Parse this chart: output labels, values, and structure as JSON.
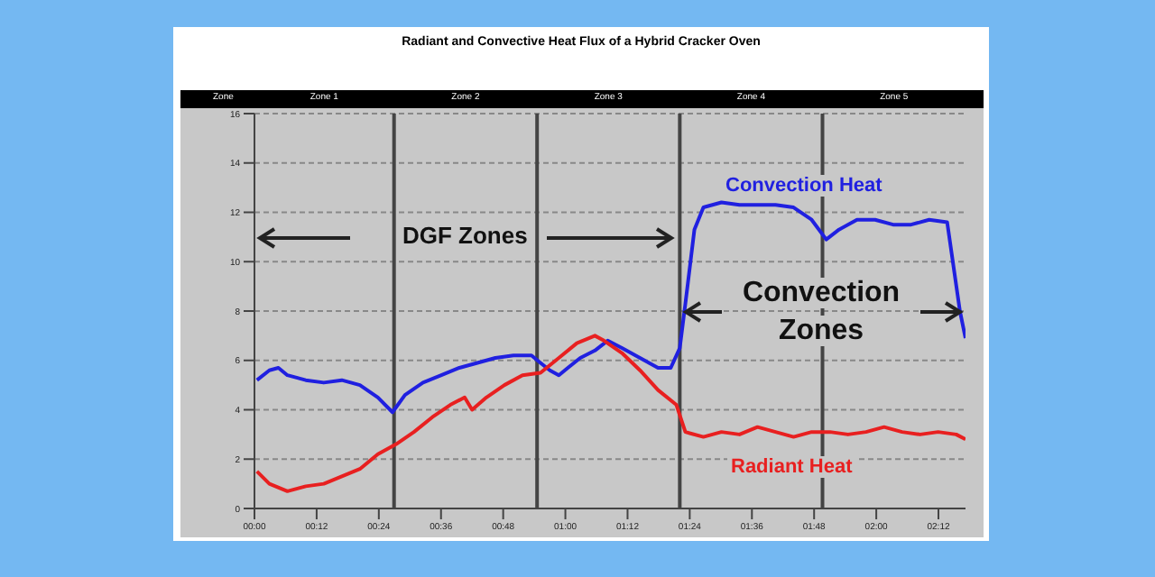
{
  "chart_data": {
    "type": "line",
    "title": "Radiant and Convective Heat Flux of a Hybrid Cracker Oven",
    "xlim": [
      0,
      2.287
    ],
    "xticks": [
      {
        "value": 0,
        "label": "00:00"
      },
      {
        "value": 0.2,
        "label": "00:12"
      },
      {
        "value": 0.4,
        "label": "00:24"
      },
      {
        "value": 0.6,
        "label": "00:36"
      },
      {
        "value": 0.8,
        "label": "00:48"
      },
      {
        "value": 1.0,
        "label": "01:00"
      },
      {
        "value": 1.2,
        "label": "01:12"
      },
      {
        "value": 1.4,
        "label": "01:24"
      },
      {
        "value": 1.6,
        "label": "01:36"
      },
      {
        "value": 1.8,
        "label": "01:48"
      },
      {
        "value": 2.0,
        "label": "02:00"
      },
      {
        "value": 2.2,
        "label": "02:12"
      }
    ],
    "ylim": [
      0,
      16
    ],
    "yticks": [
      0,
      2,
      4,
      6,
      8,
      10,
      12,
      14,
      16
    ],
    "grid": "y",
    "marker": "none",
    "line_style": "solid",
    "legend": false,
    "series": [
      {
        "name": "Convection Heat",
        "color": "#2020e0",
        "x": [
          0.008,
          0.048,
          0.077,
          0.106,
          0.165,
          0.223,
          0.281,
          0.339,
          0.397,
          0.444,
          0.484,
          0.542,
          0.601,
          0.659,
          0.717,
          0.775,
          0.833,
          0.891,
          0.92,
          0.95,
          0.979,
          1.008,
          1.048,
          1.095,
          1.136,
          1.182,
          1.24,
          1.298,
          1.339,
          1.368,
          1.386,
          1.415,
          1.444,
          1.502,
          1.56,
          1.618,
          1.676,
          1.734,
          1.792,
          1.839,
          1.88,
          1.938,
          1.996,
          2.054,
          2.112,
          2.17,
          2.228,
          2.269,
          2.287
        ],
        "values": [
          5.2,
          5.6,
          5.7,
          5.4,
          5.2,
          5.1,
          5.2,
          5.0,
          4.5,
          3.9,
          4.6,
          5.1,
          5.4,
          5.7,
          5.9,
          6.1,
          6.2,
          6.2,
          5.9,
          5.6,
          5.4,
          5.7,
          6.1,
          6.4,
          6.8,
          6.5,
          6.1,
          5.7,
          5.7,
          6.5,
          8.3,
          11.3,
          12.2,
          12.4,
          12.3,
          12.3,
          12.3,
          12.2,
          11.7,
          10.9,
          11.3,
          11.7,
          11.7,
          11.5,
          11.5,
          11.7,
          11.6,
          8.0,
          6.9
        ]
      },
      {
        "name": "Radiant Heat",
        "color": "#e82020",
        "x": [
          0.008,
          0.048,
          0.106,
          0.165,
          0.223,
          0.281,
          0.339,
          0.397,
          0.455,
          0.513,
          0.572,
          0.63,
          0.676,
          0.7,
          0.746,
          0.804,
          0.862,
          0.92,
          0.979,
          1.037,
          1.095,
          1.124,
          1.182,
          1.24,
          1.298,
          1.357,
          1.386,
          1.444,
          1.502,
          1.56,
          1.618,
          1.676,
          1.734,
          1.792,
          1.851,
          1.909,
          1.967,
          2.025,
          2.083,
          2.141,
          2.199,
          2.257,
          2.287
        ],
        "values": [
          1.5,
          1.0,
          0.7,
          0.9,
          1.0,
          1.3,
          1.6,
          2.2,
          2.6,
          3.1,
          3.7,
          4.2,
          4.5,
          4.0,
          4.5,
          5.0,
          5.4,
          5.5,
          6.1,
          6.7,
          7.0,
          6.8,
          6.3,
          5.6,
          4.8,
          4.2,
          3.1,
          2.9,
          3.1,
          3.0,
          3.3,
          3.1,
          2.9,
          3.1,
          3.1,
          3.0,
          3.1,
          3.3,
          3.1,
          3.0,
          3.1,
          3.0,
          2.8
        ]
      }
    ],
    "ref_lines": [
      {
        "axis": "x",
        "value": 0.449,
        "color": "#444444"
      },
      {
        "axis": "x",
        "value": 0.909,
        "color": "#444444"
      },
      {
        "axis": "x",
        "value": 1.368,
        "color": "#444444"
      },
      {
        "axis": "x",
        "value": 1.827,
        "color": "#444444"
      }
    ],
    "annotations": [
      "DGF Zones",
      "Convection Zones",
      "Zone",
      "Zone 1",
      "Zone 2",
      "Zone 3",
      "Zone 4",
      "Zone 5"
    ]
  }
}
